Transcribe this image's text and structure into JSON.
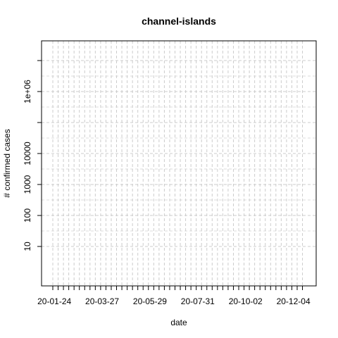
{
  "chart_data": {
    "type": "line",
    "title": "channel-islands",
    "xlabel": "date",
    "ylabel": "# confirmed cases",
    "y_scale": "log10",
    "ylim": [
      1,
      50000000
    ],
    "x_range": [
      "2020-01-22",
      "2020-12-22"
    ],
    "x_tick_labels": [
      "20-01-24",
      "20-03-27",
      "20-05-29",
      "20-07-31",
      "20-10-02",
      "20-12-04"
    ],
    "y_ticks": [
      {
        "value": 10,
        "label": "10"
      },
      {
        "value": 100,
        "label": "100"
      },
      {
        "value": 1000,
        "label": "1000"
      },
      {
        "value": 10000,
        "label": "10000"
      },
      {
        "value": 100000,
        "label": ""
      },
      {
        "value": 1000000,
        "label": "1e+06"
      },
      {
        "value": 10000000,
        "label": ""
      }
    ],
    "grid": true,
    "grid_style": "dashed",
    "series": []
  }
}
